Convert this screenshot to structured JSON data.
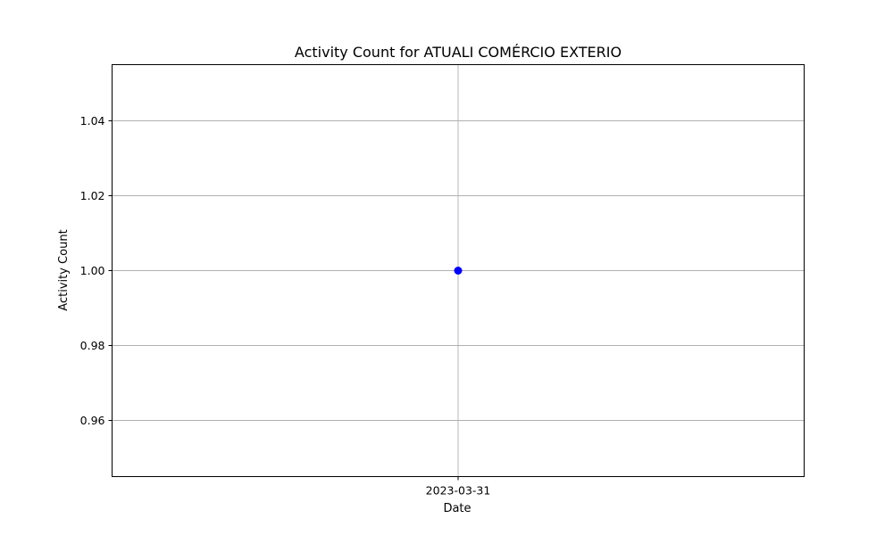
{
  "chart_data": {
    "type": "line",
    "title": "Activity Count for ATUALI COMÉRCIO EXTERIO",
    "xlabel": "Date",
    "ylabel": "Activity Count",
    "categories": [
      "2023-03-31"
    ],
    "series": [
      {
        "name": "Activity Count",
        "values": [
          1.0
        ],
        "color": "#0000ff",
        "marker": "circle"
      }
    ],
    "ylim": [
      0.945,
      1.055
    ],
    "yticks": [
      0.96,
      0.98,
      1.0,
      1.02,
      1.04
    ],
    "ytick_labels": [
      "0.96",
      "0.98",
      "1.00",
      "1.02",
      "1.04"
    ],
    "grid": true,
    "legend": "none"
  }
}
